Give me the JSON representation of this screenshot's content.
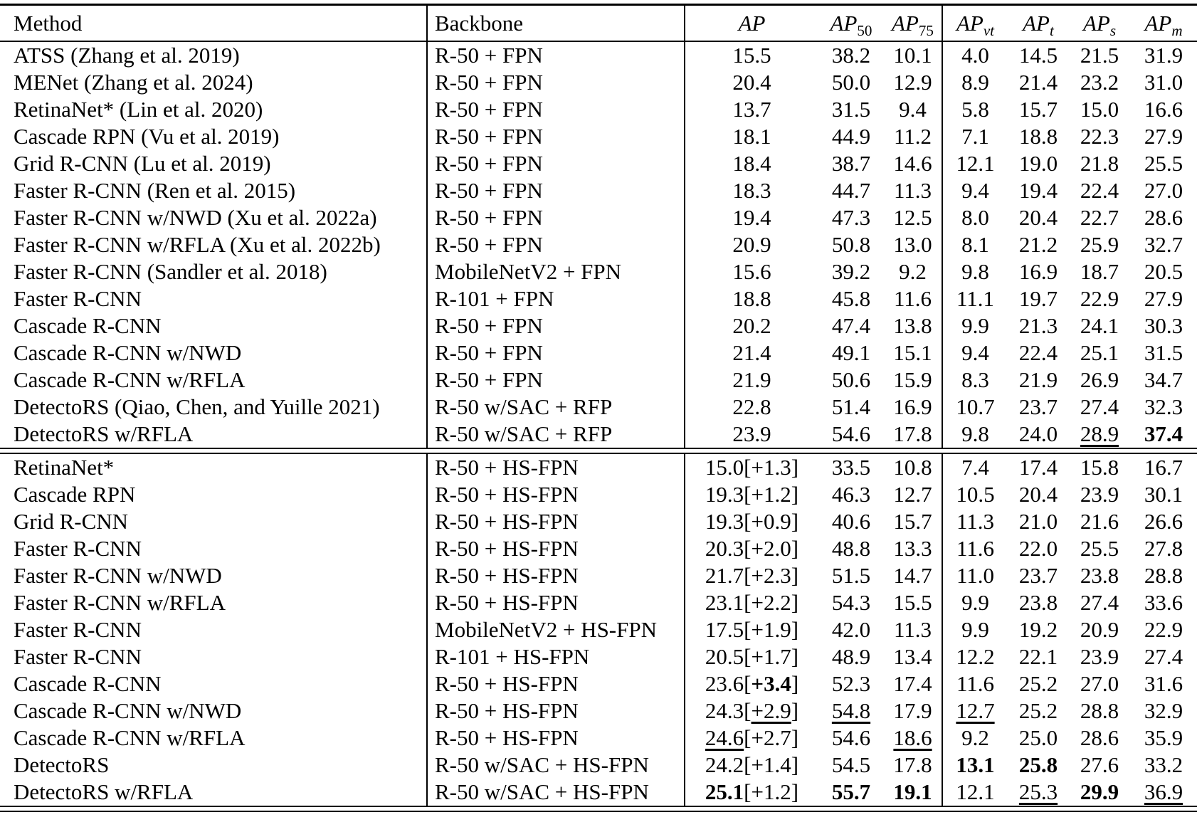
{
  "colors": {
    "text": "#000000",
    "background": "#ffffff",
    "rule": "#000000"
  },
  "table": {
    "headers": {
      "method": "Method",
      "backbone": "Backbone",
      "metrics": [
        {
          "base": "AP",
          "sub": ""
        },
        {
          "base": "AP",
          "sub": "50"
        },
        {
          "base": "AP",
          "sub": "75"
        },
        {
          "base": "AP",
          "sub": "vt"
        },
        {
          "base": "AP",
          "sub": "t"
        },
        {
          "base": "AP",
          "sub": "s"
        },
        {
          "base": "AP",
          "sub": "m"
        }
      ]
    },
    "sections": [
      {
        "name": "baseline-necks",
        "rows": [
          {
            "method": "ATSS (Zhang et al. 2019)",
            "backbone": "R-50 + FPN",
            "values": [
              "15.5",
              "38.2",
              "10.1",
              "4.0",
              "14.5",
              "21.5",
              "31.9"
            ]
          },
          {
            "method": "MENet (Zhang et al. 2024)",
            "backbone": "R-50 + FPN",
            "values": [
              "20.4",
              "50.0",
              "12.9",
              "8.9",
              "21.4",
              "23.2",
              "31.0"
            ]
          },
          {
            "method": "RetinaNet* (Lin et al. 2020)",
            "backbone": "R-50 + FPN",
            "values": [
              "13.7",
              "31.5",
              "9.4",
              "5.8",
              "15.7",
              "15.0",
              "16.6"
            ]
          },
          {
            "method": "Cascade RPN (Vu et al. 2019)",
            "backbone": "R-50 + FPN",
            "values": [
              "18.1",
              "44.9",
              "11.2",
              "7.1",
              "18.8",
              "22.3",
              "27.9"
            ]
          },
          {
            "method": "Grid R-CNN (Lu et al. 2019)",
            "backbone": "R-50 + FPN",
            "values": [
              "18.4",
              "38.7",
              "14.6",
              "12.1",
              "19.0",
              "21.8",
              "25.5"
            ]
          },
          {
            "method": "Faster R-CNN (Ren et al. 2015)",
            "backbone": "R-50 + FPN",
            "values": [
              "18.3",
              "44.7",
              "11.3",
              "9.4",
              "19.4",
              "22.4",
              "27.0"
            ]
          },
          {
            "method": "Faster R-CNN w/NWD (Xu et al. 2022a)",
            "backbone": "R-50 + FPN",
            "values": [
              "19.4",
              "47.3",
              "12.5",
              "8.0",
              "20.4",
              "22.7",
              "28.6"
            ]
          },
          {
            "method": "Faster R-CNN w/RFLA (Xu et al. 2022b)",
            "backbone": "R-50 + FPN",
            "values": [
              "20.9",
              "50.8",
              "13.0",
              "8.1",
              "21.2",
              "25.9",
              "32.7"
            ]
          },
          {
            "method": "Faster R-CNN (Sandler et al. 2018)",
            "backbone": "MobileNetV2 + FPN",
            "values": [
              "15.6",
              "39.2",
              "9.2",
              "9.8",
              "16.9",
              "18.7",
              "20.5"
            ]
          },
          {
            "method": "Faster R-CNN",
            "backbone": "R-101 + FPN",
            "values": [
              "18.8",
              "45.8",
              "11.6",
              "11.1",
              "19.7",
              "22.9",
              "27.9"
            ]
          },
          {
            "method": "Cascade R-CNN",
            "backbone": "R-50 + FPN",
            "values": [
              "20.2",
              "47.4",
              "13.8",
              "9.9",
              "21.3",
              "24.1",
              "30.3"
            ]
          },
          {
            "method": "Cascade R-CNN w/NWD",
            "backbone": "R-50 + FPN",
            "values": [
              "21.4",
              "49.1",
              "15.1",
              "9.4",
              "22.4",
              "25.1",
              "31.5"
            ]
          },
          {
            "method": "Cascade R-CNN w/RFLA",
            "backbone": "R-50 + FPN",
            "values": [
              "21.9",
              "50.6",
              "15.9",
              "8.3",
              "21.9",
              "26.9",
              "34.7"
            ]
          },
          {
            "method": "DetectoRS (Qiao, Chen, and Yuille 2021)",
            "backbone": "R-50 w/SAC + RFP",
            "values": [
              "22.8",
              "51.4",
              "16.9",
              "10.7",
              "23.7",
              "27.4",
              "32.3"
            ]
          },
          {
            "method": "DetectoRS w/RFLA",
            "backbone": "R-50 w/SAC + RFP",
            "values": [
              "23.9",
              "54.6",
              "17.8",
              "9.8",
              "24.0",
              "__28.9__",
              "**37.4**"
            ]
          }
        ]
      },
      {
        "name": "hs-fpn",
        "rows": [
          {
            "method": "RetinaNet*",
            "backbone": "R-50 + HS-FPN",
            "values": [
              "15.0[+1.3]",
              "33.5",
              "10.8",
              "7.4",
              "17.4",
              "15.8",
              "16.7"
            ]
          },
          {
            "method": "Cascade RPN",
            "backbone": "R-50 + HS-FPN",
            "values": [
              "19.3[+1.2]",
              "46.3",
              "12.7",
              "10.5",
              "20.4",
              "23.9",
              "30.1"
            ]
          },
          {
            "method": "Grid R-CNN",
            "backbone": "R-50 + HS-FPN",
            "values": [
              "19.3[+0.9]",
              "40.6",
              "15.7",
              "11.3",
              "21.0",
              "21.6",
              "26.6"
            ]
          },
          {
            "method": "Faster R-CNN",
            "backbone": "R-50 + HS-FPN",
            "values": [
              "20.3[+2.0]",
              "48.8",
              "13.3",
              "11.6",
              "22.0",
              "25.5",
              "27.8"
            ]
          },
          {
            "method": "Faster R-CNN w/NWD",
            "backbone": "R-50 + HS-FPN",
            "values": [
              "21.7[+2.3]",
              "51.5",
              "14.7",
              "11.0",
              "23.7",
              "23.8",
              "28.8"
            ]
          },
          {
            "method": "Faster R-CNN w/RFLA",
            "backbone": "R-50 + HS-FPN",
            "values": [
              "23.1[+2.2]",
              "54.3",
              "15.5",
              "9.9",
              "23.8",
              "27.4",
              "33.6"
            ]
          },
          {
            "method": "Faster R-CNN",
            "backbone": "MobileNetV2 + HS-FPN",
            "values": [
              "17.5[+1.9]",
              "42.0",
              "11.3",
              "9.9",
              "19.2",
              "20.9",
              "22.9"
            ]
          },
          {
            "method": "Faster R-CNN",
            "backbone": "R-101 + HS-FPN",
            "values": [
              "20.5[+1.7]",
              "48.9",
              "13.4",
              "12.2",
              "22.1",
              "23.9",
              "27.4"
            ]
          },
          {
            "method": "Cascade R-CNN",
            "backbone": "R-50 + HS-FPN",
            "values": [
              "23.6[**+3.4**]",
              "52.3",
              "17.4",
              "11.6",
              "25.2",
              "27.0",
              "31.6"
            ]
          },
          {
            "method": "Cascade R-CNN w/NWD",
            "backbone": "R-50 + HS-FPN",
            "values": [
              "24.3[__+2.9__]",
              "__54.8__",
              "17.9",
              "__12.7__",
              "25.2",
              "28.8",
              "32.9"
            ]
          },
          {
            "method": "Cascade R-CNN w/RFLA",
            "backbone": "R-50 + HS-FPN",
            "values": [
              "__24.6__[+2.7]",
              "54.6",
              "__18.6__",
              "9.2",
              "25.0",
              "28.6",
              "35.9"
            ]
          },
          {
            "method": "DetectoRS",
            "backbone": "R-50 w/SAC + HS-FPN",
            "values": [
              "24.2[+1.4]",
              "54.5",
              "17.8",
              "**13.1**",
              "**25.8**",
              "27.6",
              "33.2"
            ]
          },
          {
            "method": "DetectoRS w/RFLA",
            "backbone": "R-50 w/SAC + HS-FPN",
            "values": [
              "**25.1**[+1.2]",
              "**55.7**",
              "**19.1**",
              "12.1",
              "__25.3__",
              "**29.9**",
              "__36.9__"
            ]
          }
        ]
      }
    ]
  }
}
